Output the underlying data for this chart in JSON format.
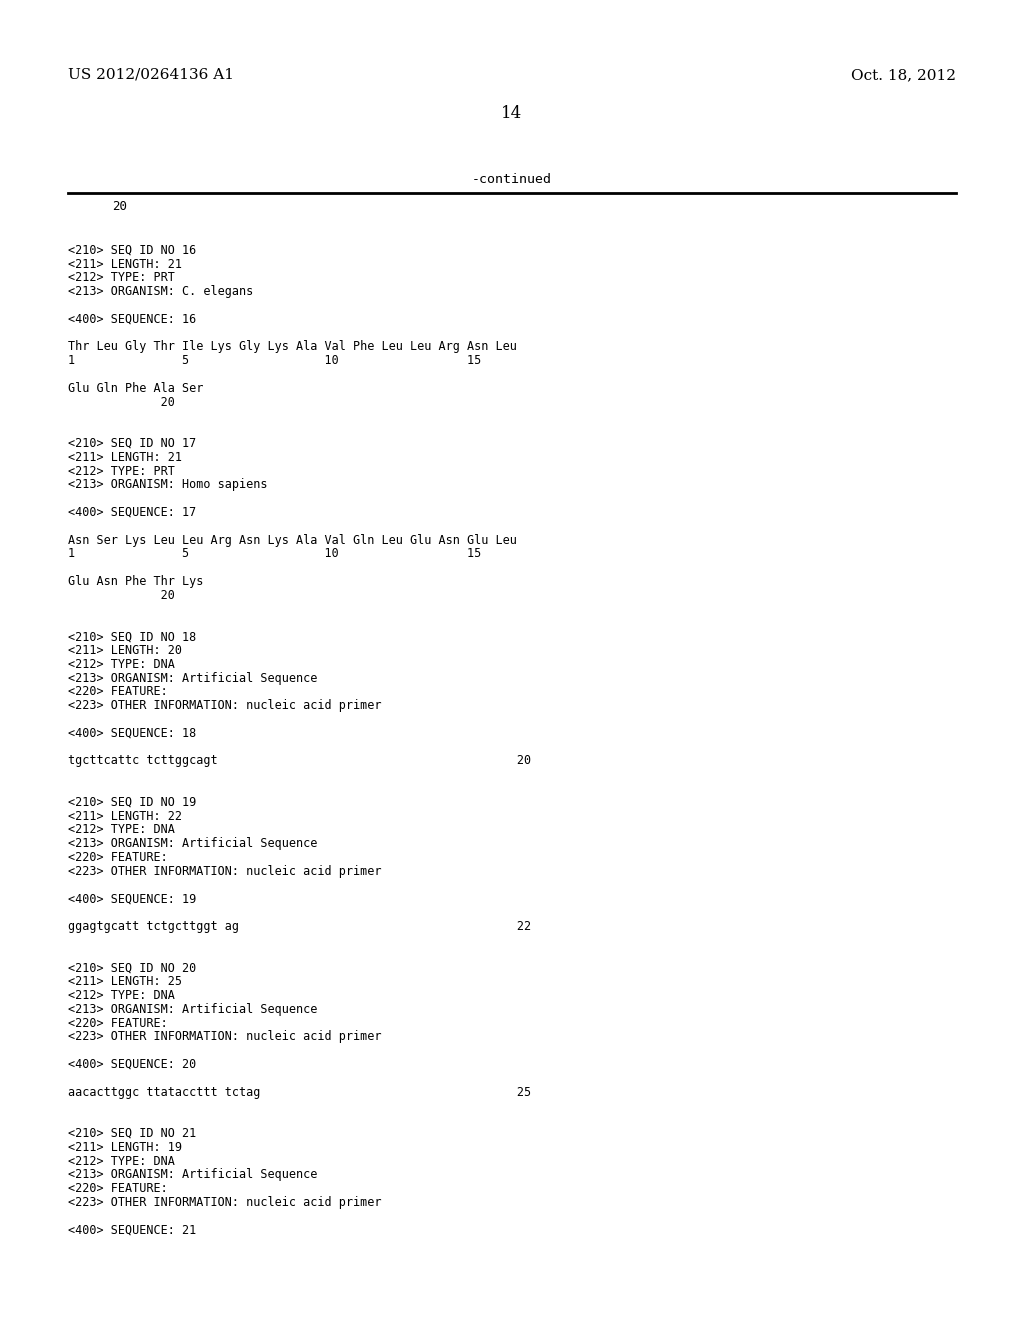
{
  "background_color": "#ffffff",
  "header_left": "US 2012/0264136 A1",
  "header_right": "Oct. 18, 2012",
  "page_number": "14",
  "continued_label": "-continued",
  "top_number": "20",
  "content_lines": [
    "",
    "<210> SEQ ID NO 16",
    "<211> LENGTH: 21",
    "<212> TYPE: PRT",
    "<213> ORGANISM: C. elegans",
    "",
    "<400> SEQUENCE: 16",
    "",
    "Thr Leu Gly Thr Ile Lys Gly Lys Ala Val Phe Leu Leu Arg Asn Leu",
    "1               5                   10                  15",
    "",
    "Glu Gln Phe Ala Ser",
    "             20",
    "",
    "",
    "<210> SEQ ID NO 17",
    "<211> LENGTH: 21",
    "<212> TYPE: PRT",
    "<213> ORGANISM: Homo sapiens",
    "",
    "<400> SEQUENCE: 17",
    "",
    "Asn Ser Lys Leu Leu Arg Asn Lys Ala Val Gln Leu Glu Asn Glu Leu",
    "1               5                   10                  15",
    "",
    "Glu Asn Phe Thr Lys",
    "             20",
    "",
    "",
    "<210> SEQ ID NO 18",
    "<211> LENGTH: 20",
    "<212> TYPE: DNA",
    "<213> ORGANISM: Artificial Sequence",
    "<220> FEATURE:",
    "<223> OTHER INFORMATION: nucleic acid primer",
    "",
    "<400> SEQUENCE: 18",
    "",
    "tgcttcattc tcttggcagt                                          20",
    "",
    "",
    "<210> SEQ ID NO 19",
    "<211> LENGTH: 22",
    "<212> TYPE: DNA",
    "<213> ORGANISM: Artificial Sequence",
    "<220> FEATURE:",
    "<223> OTHER INFORMATION: nucleic acid primer",
    "",
    "<400> SEQUENCE: 19",
    "",
    "ggagtgcatt tctgcttggt ag                                       22",
    "",
    "",
    "<210> SEQ ID NO 20",
    "<211> LENGTH: 25",
    "<212> TYPE: DNA",
    "<213> ORGANISM: Artificial Sequence",
    "<220> FEATURE:",
    "<223> OTHER INFORMATION: nucleic acid primer",
    "",
    "<400> SEQUENCE: 20",
    "",
    "aacacttggc ttataccttt tctag                                    25",
    "",
    "",
    "<210> SEQ ID NO 21",
    "<211> LENGTH: 19",
    "<212> TYPE: DNA",
    "<213> ORGANISM: Artificial Sequence",
    "<220> FEATURE:",
    "<223> OTHER INFORMATION: nucleic acid primer",
    "",
    "<400> SEQUENCE: 21"
  ]
}
